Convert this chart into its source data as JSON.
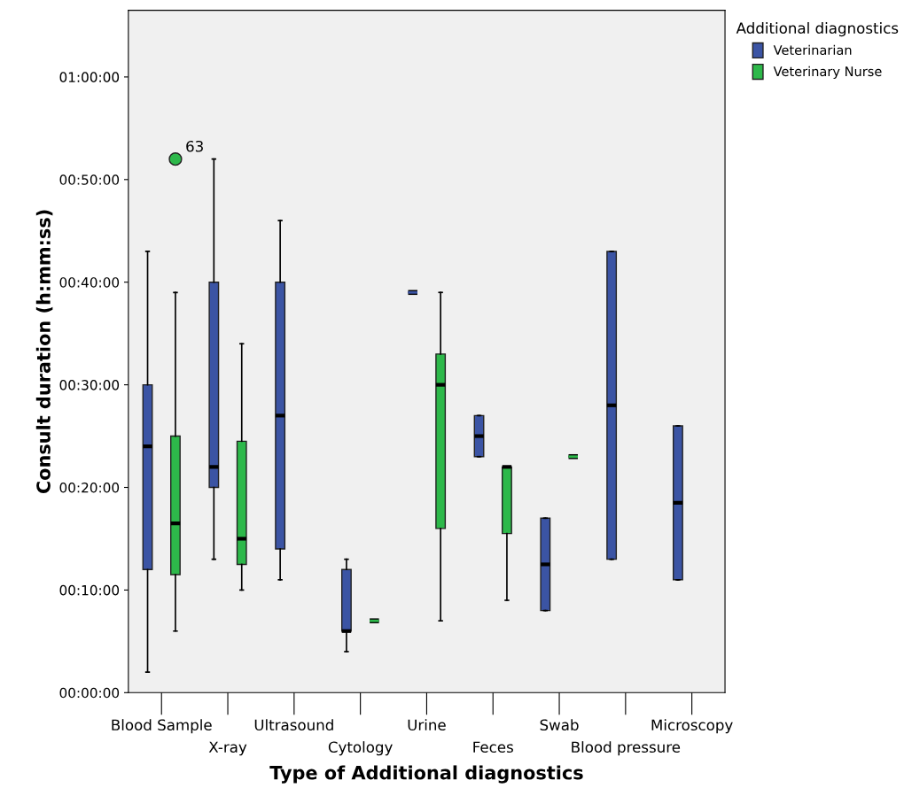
{
  "chart_data": {
    "type": "box",
    "xlabel": "Type of Additional diagnostics",
    "ylabel": "Consult duration (h:mm:ss)",
    "legend_title": "Additional diagnostics",
    "legend": "right",
    "grid": false,
    "categories": [
      "Blood Sample",
      "X-ray",
      "Ultrasound",
      "Cytology",
      "Urine",
      "Feces",
      "Swab",
      "Blood pressure",
      "Microscopy"
    ],
    "ylim": [
      0,
      66.5
    ],
    "yticks": [
      {
        "value": 0,
        "label": "00:00:00"
      },
      {
        "value": 10,
        "label": "00:10:00"
      },
      {
        "value": 20,
        "label": "00:20:00"
      },
      {
        "value": 30,
        "label": "00:30:00"
      },
      {
        "value": 40,
        "label": "00:40:00"
      },
      {
        "value": 50,
        "label": "00:50:00"
      },
      {
        "value": 60,
        "label": "01:00:00"
      }
    ],
    "marker": "circle",
    "series": [
      {
        "name": "Veterinarian",
        "color": "#3b54a4",
        "boxes": [
          {
            "low": 2,
            "q1": 12,
            "median": 24,
            "q3": 30,
            "high": 43
          },
          {
            "low": 13,
            "q1": 20,
            "median": 22,
            "q3": 40,
            "high": 52
          },
          {
            "low": 11,
            "q1": 14,
            "median": 27,
            "q3": 40,
            "high": 46
          },
          {
            "low": 4,
            "q1": 6,
            "median": 6,
            "q3": 12,
            "high": 13
          },
          {
            "low": 39,
            "q1": 39,
            "median": 39,
            "q3": 39,
            "high": 39
          },
          {
            "low": 23,
            "q1": 23,
            "median": 25,
            "q3": 27,
            "high": 27
          },
          {
            "low": 8,
            "q1": 8,
            "median": 12.5,
            "q3": 17,
            "high": 17
          },
          {
            "low": 13,
            "q1": 13,
            "median": 28,
            "q3": 43,
            "high": 43
          },
          {
            "low": 11,
            "q1": 11,
            "median": 18.5,
            "q3": 26,
            "high": 26
          }
        ]
      },
      {
        "name": "Veterinary Nurse",
        "color": "#2db84a",
        "boxes": [
          {
            "low": 6,
            "q1": 11.5,
            "median": 16.5,
            "q3": 25,
            "high": 39,
            "outliers": [
              52
            ]
          },
          {
            "low": 10,
            "q1": 12.5,
            "median": 15,
            "q3": 24.5,
            "high": 34
          },
          null,
          {
            "low": 7,
            "q1": 7,
            "median": 7,
            "q3": 7,
            "high": 7
          },
          {
            "low": 7,
            "q1": 16,
            "median": 30,
            "q3": 33,
            "high": 39
          },
          {
            "low": 9,
            "q1": 15.5,
            "median": 22,
            "q3": 22,
            "high": 22
          },
          {
            "low": 23,
            "q1": 23,
            "median": 23,
            "q3": 23,
            "high": 23
          },
          null,
          null
        ]
      }
    ],
    "annotations": [
      "63"
    ]
  }
}
